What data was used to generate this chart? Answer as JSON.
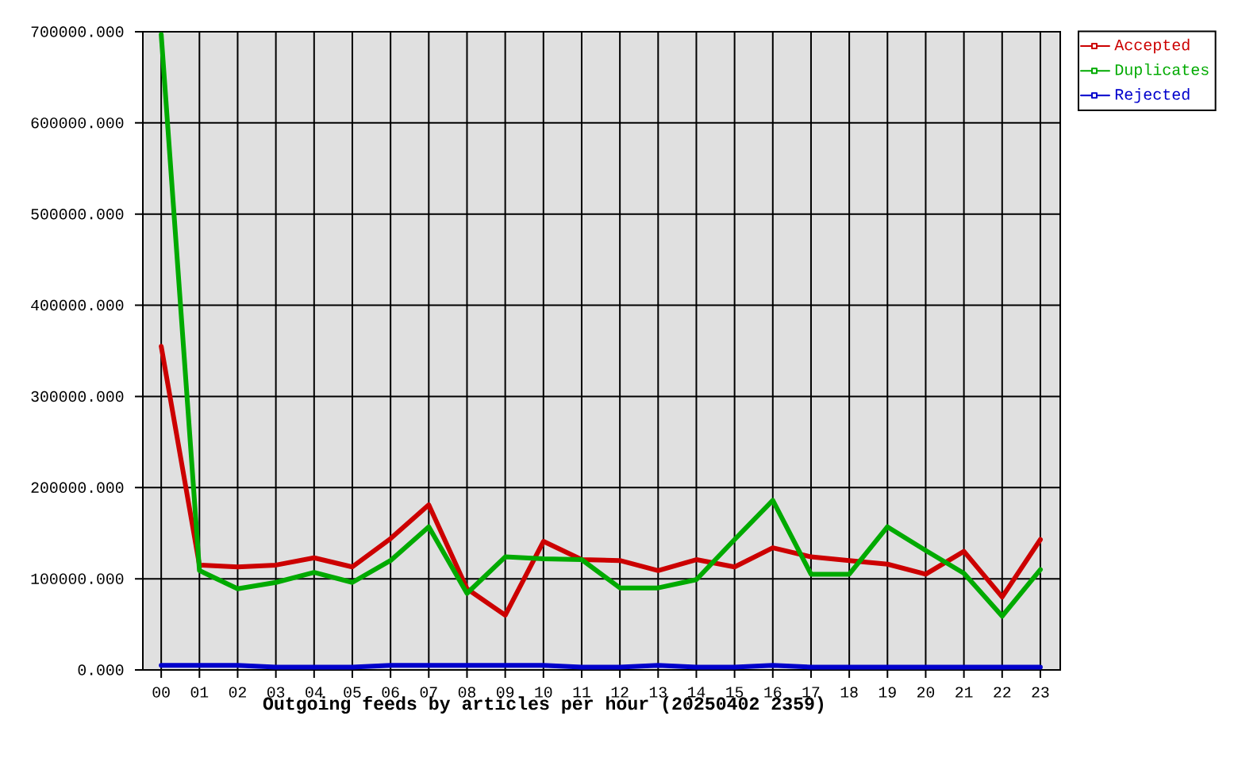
{
  "chart_data": {
    "type": "line",
    "title": "Outgoing feeds by articles per hour (20250402 2359)",
    "categories": [
      "00",
      "01",
      "02",
      "03",
      "04",
      "05",
      "06",
      "07",
      "08",
      "09",
      "10",
      "11",
      "12",
      "13",
      "14",
      "15",
      "16",
      "17",
      "18",
      "19",
      "20",
      "21",
      "22",
      "23"
    ],
    "series": [
      {
        "name": "Accepted",
        "color": "#cc0000",
        "values": [
          355000,
          115000,
          113000,
          115000,
          123000,
          113000,
          144000,
          181000,
          89000,
          60000,
          141000,
          121000,
          120000,
          109000,
          121000,
          113000,
          134000,
          124000,
          120000,
          116000,
          105000,
          130000,
          80000,
          143000
        ]
      },
      {
        "name": "Duplicates",
        "color": "#00aa00",
        "values": [
          697000,
          109000,
          89000,
          96000,
          107000,
          96000,
          120000,
          157000,
          84000,
          124000,
          122000,
          121000,
          90000,
          90000,
          99000,
          143000,
          186000,
          105000,
          105000,
          157000,
          131000,
          106000,
          59000,
          110000
        ]
      },
      {
        "name": "Rejected",
        "color": "#0000cc",
        "values": [
          5000,
          5000,
          5000,
          3000,
          3000,
          3000,
          5000,
          5000,
          5000,
          5000,
          5000,
          3000,
          3000,
          5000,
          3000,
          3000,
          5000,
          3000,
          3000,
          3000,
          3000,
          3000,
          3000,
          3000
        ]
      }
    ],
    "ylim": [
      0,
      700000
    ],
    "yticks": [
      {
        "value": 0,
        "label": "0.000"
      },
      {
        "value": 100000,
        "label": "100000.000"
      },
      {
        "value": 200000,
        "label": "200000.000"
      },
      {
        "value": 300000,
        "label": "300000.000"
      },
      {
        "value": 400000,
        "label": "400000.000"
      },
      {
        "value": 500000,
        "label": "500000.000"
      },
      {
        "value": 600000,
        "label": "600000.000"
      },
      {
        "value": 700000,
        "label": "700000.000"
      }
    ],
    "grid": true,
    "legend": "top right"
  }
}
